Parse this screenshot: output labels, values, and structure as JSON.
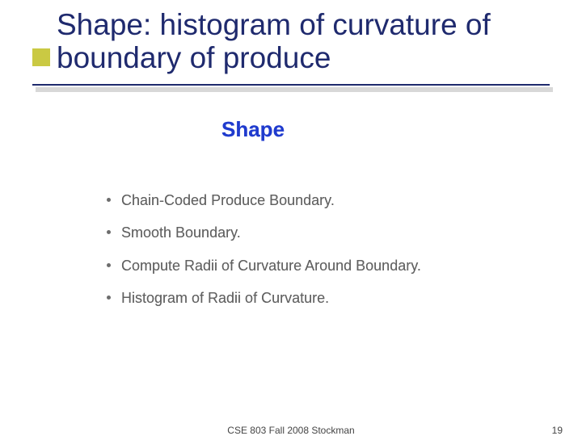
{
  "title": "Shape: histogram of curvature of boundary of produce",
  "colors": {
    "title_color": "#1f2a6e",
    "bullet_square": "#cac943",
    "rule_dark": "#1f2a6e",
    "rule_shadow": "#d8d8d8",
    "heading_color": "#1f3bce",
    "body_text": "#616161",
    "background": "#ffffff"
  },
  "content": {
    "heading": "Shape",
    "heading_fontsize": 26,
    "item_fontsize": 18,
    "items": [
      "Chain-Coded Produce Boundary.",
      "Smooth Boundary.",
      "Compute Radii of Curvature Around Boundary.",
      "Histogram of  Radii of Curvature."
    ]
  },
  "footer": {
    "center": "CSE 803 Fall 2008 Stockman",
    "pagenum": "19"
  }
}
